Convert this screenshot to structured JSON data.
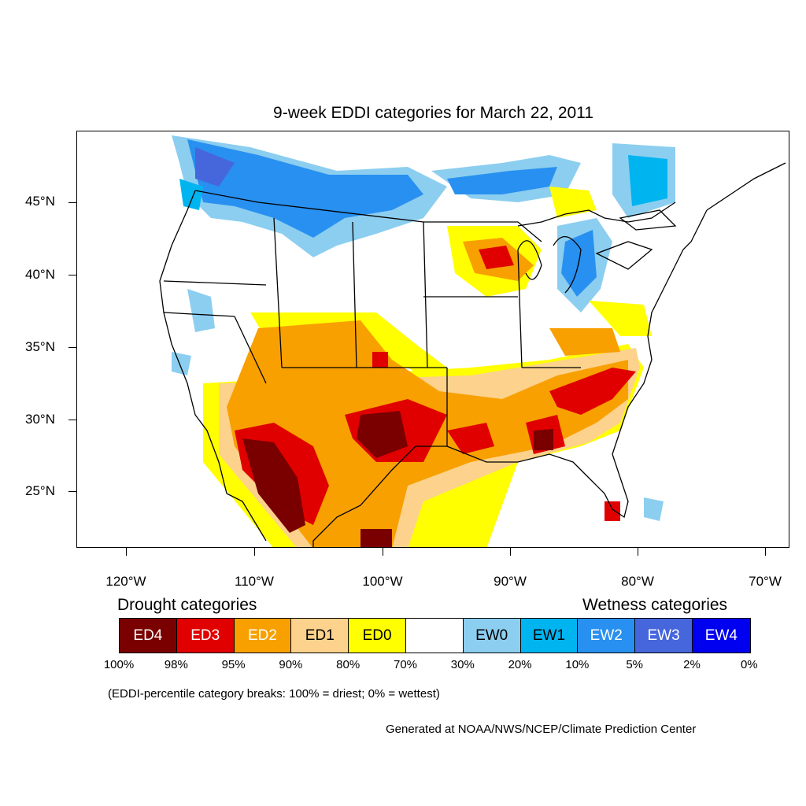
{
  "map": {
    "title": "9-week EDDI categories for March 22, 2011",
    "lat_labels": [
      "45°N",
      "40°N",
      "35°N",
      "30°N",
      "25°N"
    ],
    "lon_labels": [
      "120°W",
      "110°W",
      "100°W",
      "90°W",
      "80°W",
      "70°W"
    ],
    "lat_range": [
      21,
      50
    ],
    "lon_range": [
      -124,
      -68.5
    ]
  },
  "legend": {
    "drought_title": "Drought categories",
    "wetness_title": "Wetness categories",
    "categories": [
      {
        "label": "ED4",
        "color": "#7a0000",
        "text_color": "#ffffff"
      },
      {
        "label": "ED3",
        "color": "#e00000",
        "text_color": "#ffffff"
      },
      {
        "label": "ED2",
        "color": "#f8a000",
        "text_color": "#ffffff"
      },
      {
        "label": "ED1",
        "color": "#fcd28c",
        "text_color": "#000000"
      },
      {
        "label": "ED0",
        "color": "#ffff00",
        "text_color": "#000000"
      },
      {
        "label": "",
        "color": "#ffffff",
        "text_color": "#000000"
      },
      {
        "label": "EW0",
        "color": "#8ccef0",
        "text_color": "#000000"
      },
      {
        "label": "EW1",
        "color": "#00b4f0",
        "text_color": "#000000"
      },
      {
        "label": "EW2",
        "color": "#2890f0",
        "text_color": "#ffffff"
      },
      {
        "label": "EW3",
        "color": "#4666dc",
        "text_color": "#ffffff"
      },
      {
        "label": "EW4",
        "color": "#0000f0",
        "text_color": "#ffffff"
      }
    ],
    "percentiles": [
      "100%",
      "98%",
      "95%",
      "90%",
      "80%",
      "70%",
      "30%",
      "20%",
      "10%",
      "5%",
      "2%",
      "0%"
    ],
    "note": "(EDDI-percentile category breaks: 100% = driest; 0% = wettest)",
    "credit": "Generated at NOAA/NWS/NCEP/Climate Prediction Center"
  }
}
